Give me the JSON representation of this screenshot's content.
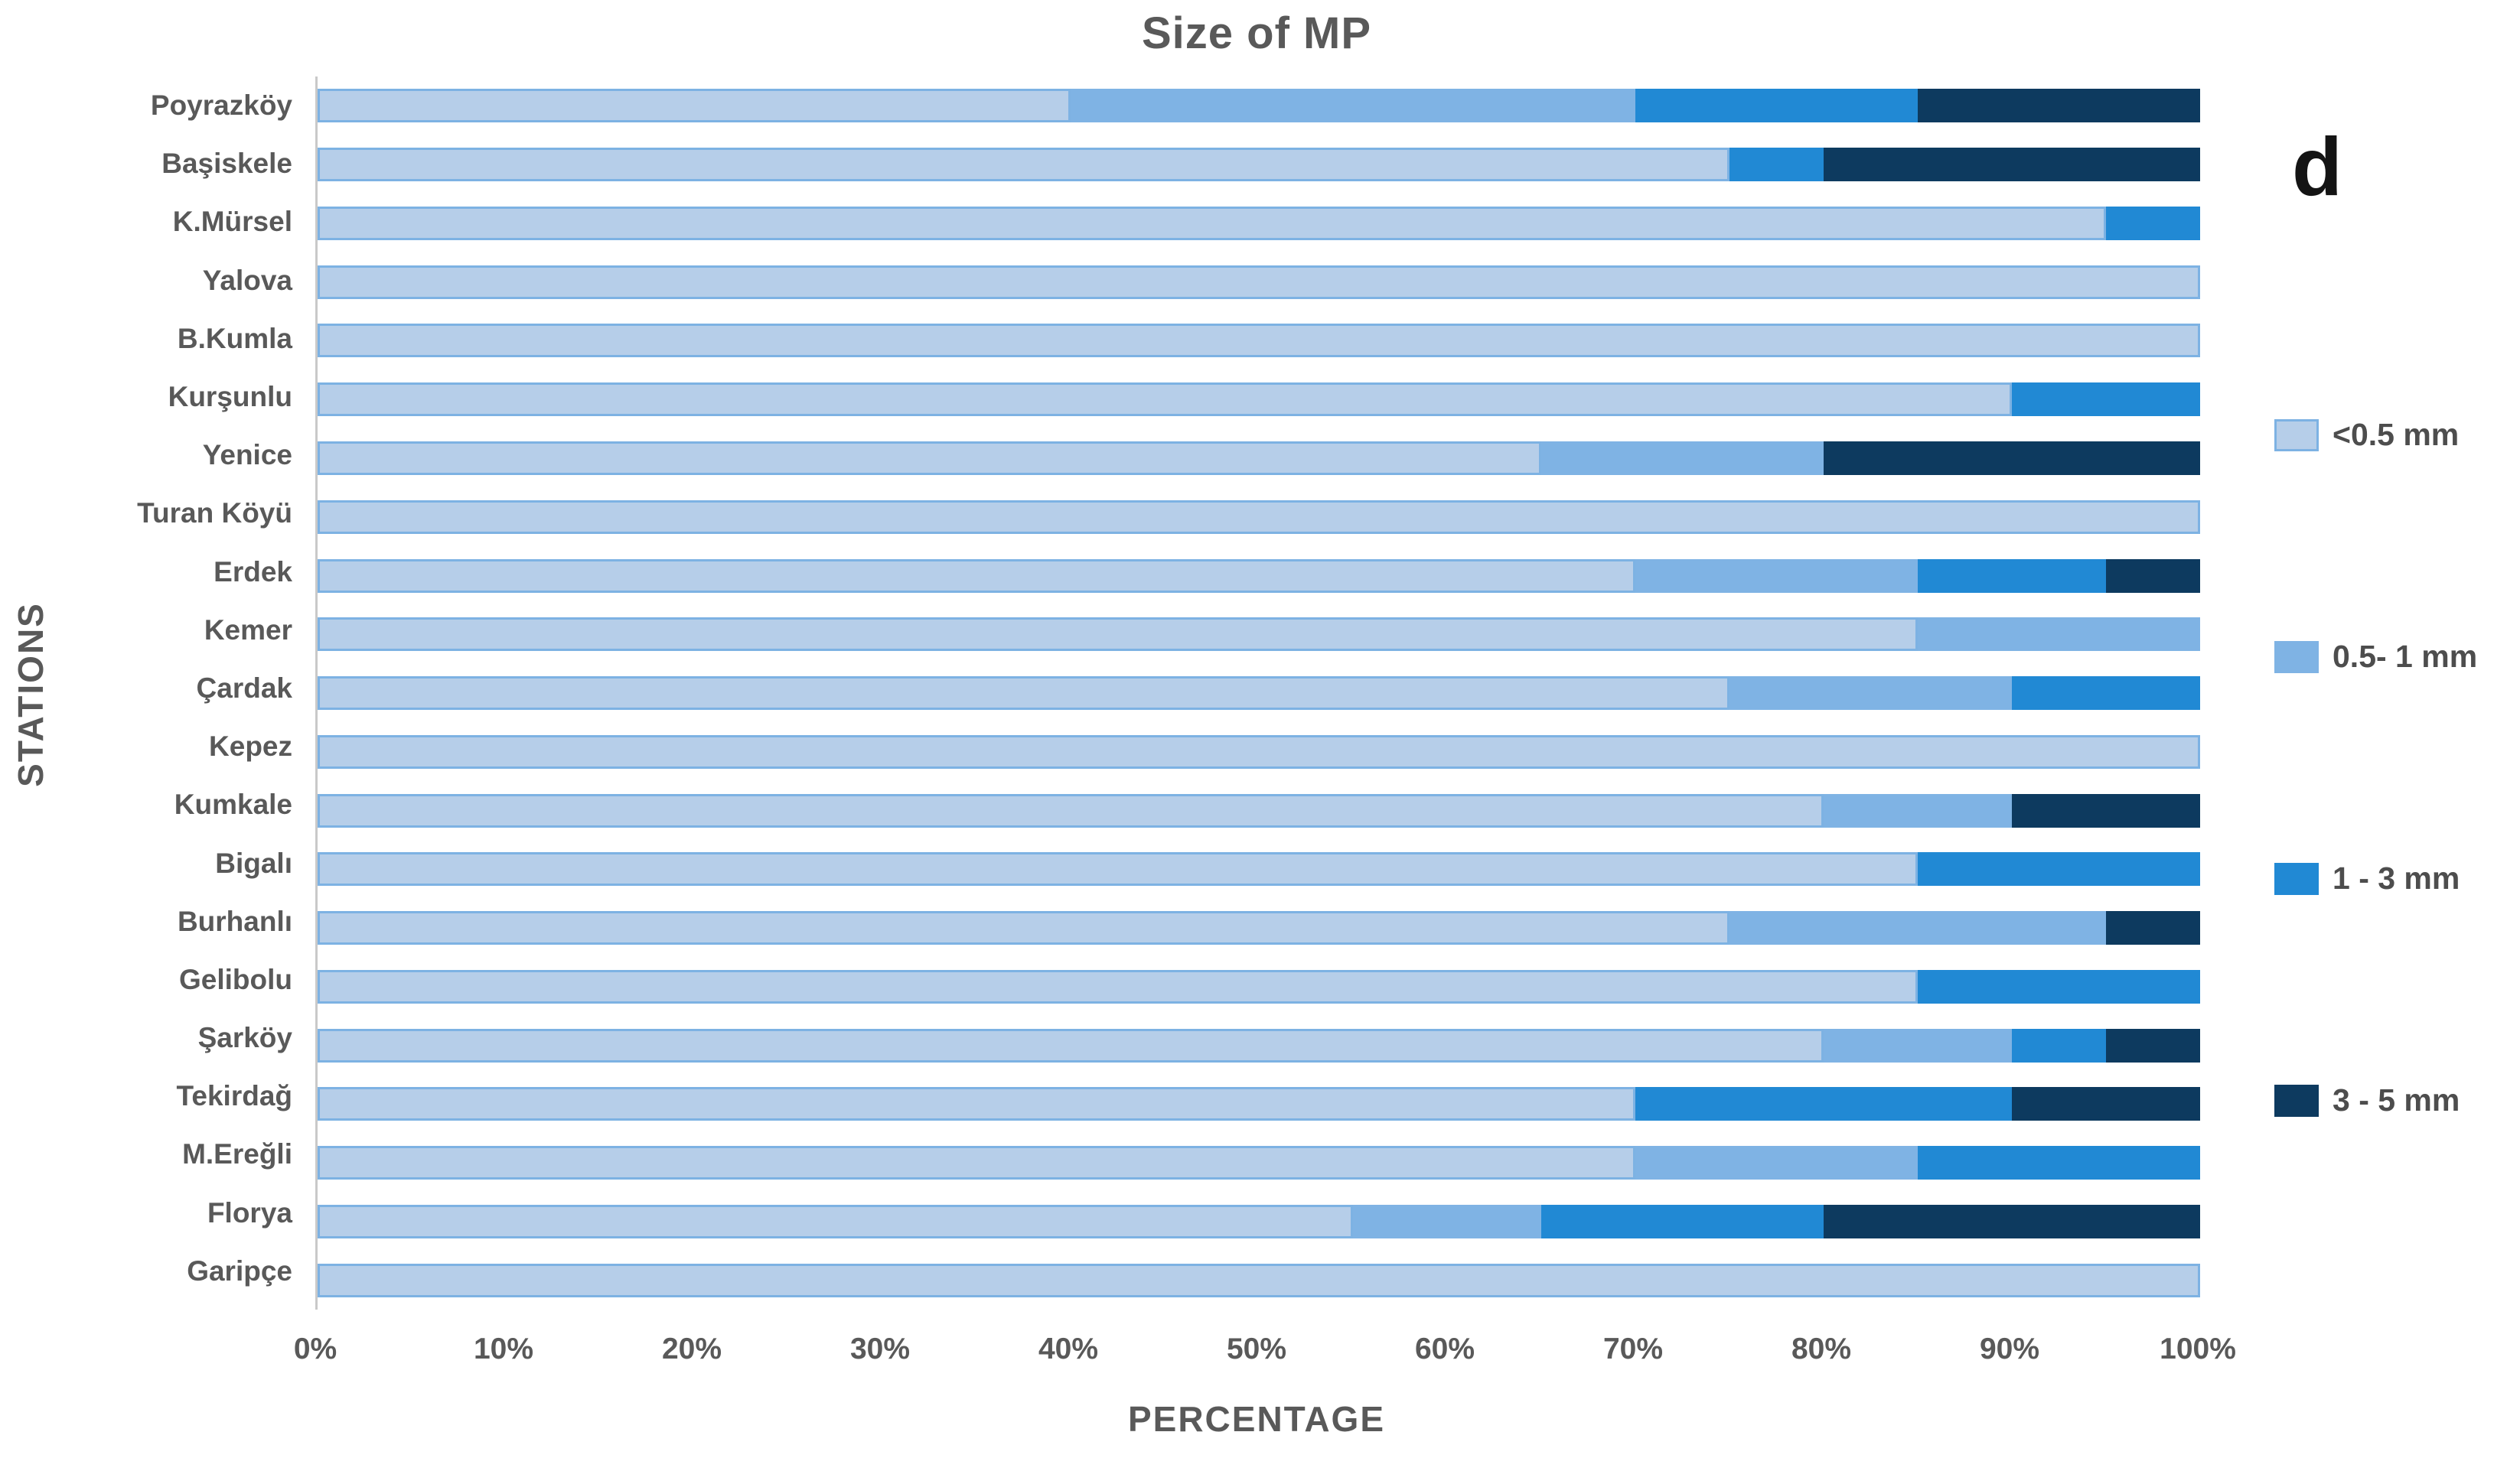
{
  "panel_label": "d",
  "style": {
    "text_color": "#595959",
    "legend_text_color": "#4d4d4d",
    "axis_color": "#c9c9c9",
    "panel_label_color": "#141414"
  },
  "chart_data": {
    "type": "bar",
    "orientation": "horizontal",
    "stacked": true,
    "title": "Size of MP",
    "xlabel": "PERCENTAGE",
    "ylabel": "STATIONS",
    "xlim": [
      0,
      100
    ],
    "x_ticks": [
      "0%",
      "10%",
      "20%",
      "30%",
      "40%",
      "50%",
      "60%",
      "70%",
      "80%",
      "90%",
      "100%"
    ],
    "grid": false,
    "legend_position": "right",
    "categories": [
      "Poyrazköy",
      "Başiskele",
      "K.Mürsel",
      "Yalova",
      "B.Kumla",
      "Kurşunlu",
      "Yenice",
      "Turan Köyü",
      "Erdek",
      "Kemer",
      "Çardak",
      "Kepez",
      "Kumkale",
      "Bigalı",
      "Burhanlı",
      "Gelibolu",
      "Şarköy",
      "Tekirdağ",
      "M.Ereğli",
      "Florya",
      "Garipçe"
    ],
    "series": [
      {
        "name": "<0.5 mm",
        "color": "#b6cee9",
        "border_color": "#7db2e3",
        "values": [
          40,
          75,
          95,
          100,
          100,
          90,
          65,
          100,
          70,
          85,
          75,
          100,
          80,
          85,
          75,
          85,
          80,
          70,
          70,
          55,
          100
        ]
      },
      {
        "name": "0.5- 1 mm",
        "color": "#7fb3e4",
        "values": [
          30,
          0,
          0,
          0,
          0,
          0,
          15,
          0,
          15,
          15,
          15,
          0,
          10,
          0,
          20,
          0,
          10,
          0,
          15,
          10,
          0
        ]
      },
      {
        "name": "1 - 3 mm",
        "color": "#2189d4",
        "values": [
          15,
          5,
          5,
          0,
          0,
          10,
          0,
          0,
          10,
          0,
          10,
          0,
          0,
          15,
          0,
          15,
          5,
          20,
          15,
          15,
          0
        ]
      },
      {
        "name": "3 - 5 mm",
        "color": "#0d3a5f",
        "values": [
          15,
          20,
          0,
          0,
          0,
          0,
          20,
          0,
          5,
          0,
          0,
          0,
          10,
          0,
          5,
          0,
          5,
          10,
          0,
          20,
          0
        ]
      }
    ]
  }
}
